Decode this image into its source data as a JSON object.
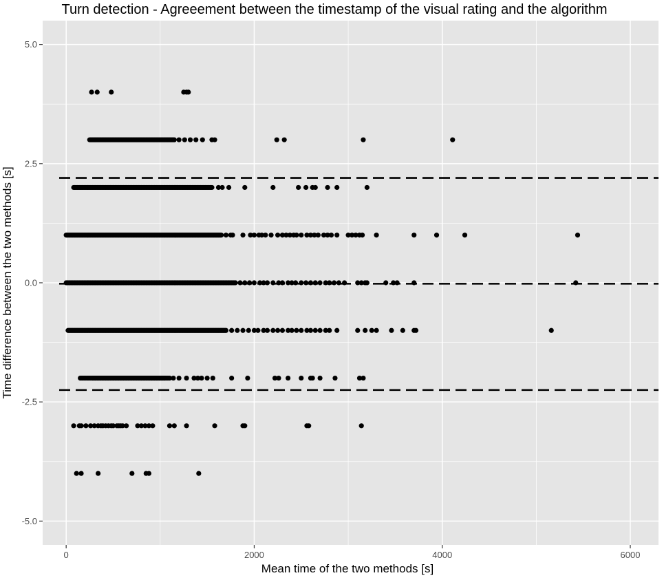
{
  "chart_data": {
    "type": "scatter",
    "title": "Turn detection - Agreeement between the timestamp of the visual rating and the algorithm",
    "xlabel": "Mean time of the two methods [s]",
    "ylabel": "Time difference between the two methods [s]",
    "xlim": [
      -250,
      6300
    ],
    "ylim": [
      -5.5,
      5.5
    ],
    "x_ticks": [
      0,
      2000,
      4000,
      6000
    ],
    "x_tick_labels": [
      "0",
      "2000",
      "4000",
      "6000"
    ],
    "y_ticks": [
      -5,
      -2.5,
      0,
      2.5,
      5
    ],
    "y_tick_labels": [
      "-5.0",
      "-2.5",
      "0.0",
      "2.5",
      "5.0"
    ],
    "grid": true,
    "panel_background": "#e5e5e5",
    "grid_color": "#ffffff",
    "point_color": "#000000",
    "reference_lines": [
      {
        "y": 2.2,
        "style": "dashed"
      },
      {
        "y": -0.02,
        "style": "dashed"
      },
      {
        "y": -2.25,
        "style": "dashed"
      }
    ],
    "bands": [
      {
        "y": 4,
        "ranges": [],
        "points": [
          270,
          330,
          480,
          1250,
          1280,
          1300
        ]
      },
      {
        "y": 3,
        "ranges": [
          [
            250,
            1150
          ]
        ],
        "points": [
          1200,
          1260,
          1320,
          1380,
          1450,
          1550,
          1580,
          2240,
          2320,
          3160,
          4110
        ]
      },
      {
        "y": 2,
        "ranges": [
          [
            80,
            1550
          ]
        ],
        "points": [
          1620,
          1660,
          1730,
          1900,
          2200,
          2470,
          2550,
          2620,
          2650,
          2780,
          2880,
          3200
        ]
      },
      {
        "y": 1,
        "ranges": [
          [
            0,
            1650
          ]
        ],
        "points": [
          1700,
          1750,
          1770,
          1880,
          1960,
          2000,
          2050,
          2080,
          2120,
          2180,
          2250,
          2300,
          2340,
          2380,
          2420,
          2450,
          2500,
          2560,
          2600,
          2640,
          2680,
          2740,
          2780,
          2820,
          2880,
          3000,
          3040,
          3080,
          3120,
          3150,
          3300,
          3700,
          3940,
          4240,
          5440
        ]
      },
      {
        "y": 0,
        "ranges": [
          [
            0,
            1800
          ]
        ],
        "points": [
          1850,
          1900,
          1950,
          2000,
          2060,
          2100,
          2140,
          2200,
          2260,
          2300,
          2360,
          2400,
          2440,
          2500,
          2550,
          2600,
          2650,
          2700,
          2760,
          2800,
          2850,
          2900,
          2960,
          3100,
          3140,
          3180,
          3200,
          3400,
          3480,
          3520,
          3700,
          5420
        ]
      },
      {
        "y": -1,
        "ranges": [
          [
            20,
            1700
          ]
        ],
        "points": [
          1760,
          1820,
          1880,
          1940,
          2000,
          2040,
          2100,
          2140,
          2200,
          2250,
          2300,
          2360,
          2400,
          2450,
          2500,
          2560,
          2600,
          2650,
          2700,
          2760,
          2800,
          2880,
          3100,
          3180,
          3250,
          3300,
          3460,
          3580,
          3700,
          3720,
          5160
        ]
      },
      {
        "y": -2,
        "ranges": [
          [
            150,
            1100
          ],
          [
            280,
            1050
          ]
        ],
        "points": [
          1140,
          1200,
          1280,
          1360,
          1400,
          1440,
          1500,
          1560,
          1760,
          1930,
          2220,
          2260,
          2360,
          2500,
          2600,
          2620,
          2700,
          2860,
          3120,
          3160
        ]
      },
      {
        "y": -3,
        "ranges": [],
        "points": [
          80,
          140,
          160,
          210,
          260,
          300,
          340,
          370,
          390,
          420,
          450,
          480,
          500,
          540,
          560,
          580,
          600,
          640,
          760,
          800,
          840,
          880,
          920,
          1100,
          1150,
          1280,
          1580,
          1880,
          1900,
          2560,
          2580,
          3140
        ]
      },
      {
        "y": -4,
        "ranges": [],
        "points": [
          110,
          160,
          340,
          700,
          850,
          880,
          1410
        ]
      }
    ]
  }
}
